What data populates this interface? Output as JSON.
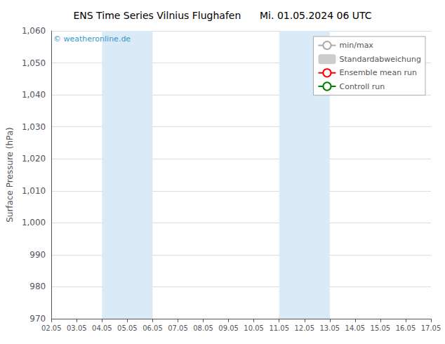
{
  "chart_data": {
    "type": "line",
    "title": "ENS Time Series Vilnius Flughafen      Mi. 01.05.2024 06 UTC",
    "ylabel": "Surface Pressure (hPa)",
    "categories": [
      "02.05",
      "03.05",
      "04.05",
      "05.05",
      "06.05",
      "07.05",
      "08.05",
      "09.05",
      "10.05",
      "11.05",
      "12.05",
      "13.05",
      "14.05",
      "15.05",
      "16.05",
      "17.05"
    ],
    "series": [
      {
        "name": "min/max",
        "type": "line",
        "color": "#aaaaaa",
        "values": [
          null,
          null,
          null,
          null,
          null,
          null,
          null,
          null,
          null,
          null,
          null,
          null,
          null,
          null,
          null,
          null
        ]
      },
      {
        "name": "Standardabweichung",
        "type": "bar",
        "color": "#cccccc",
        "values": [
          null,
          null,
          null,
          null,
          null,
          null,
          null,
          null,
          null,
          null,
          null,
          null,
          null,
          null,
          null,
          null
        ]
      },
      {
        "name": "Ensemble mean run",
        "type": "line",
        "color": "red",
        "values": [
          null,
          null,
          null,
          null,
          null,
          null,
          null,
          null,
          null,
          null,
          null,
          null,
          null,
          null,
          null,
          null
        ]
      },
      {
        "name": "Controll run",
        "type": "line",
        "color": "green",
        "values": [
          null,
          null,
          null,
          null,
          null,
          null,
          null,
          null,
          null,
          null,
          null,
          null,
          null,
          null,
          null,
          null
        ]
      }
    ],
    "shaded_regions": [
      {
        "start": "04.05",
        "end": "06.05",
        "color": "#daeaf7"
      },
      {
        "start": "11.05",
        "end": "13.05",
        "color": "#daeaf7"
      }
    ],
    "annotations": [
      {
        "text": "© weatheronline.de",
        "color": "#3399cc"
      }
    ],
    "ylim": [
      970,
      1060
    ],
    "yticks": [
      970,
      980,
      990,
      1000,
      1010,
      1020,
      1030,
      1040,
      1050,
      1060
    ],
    "grid": true,
    "legend": "upper right"
  }
}
